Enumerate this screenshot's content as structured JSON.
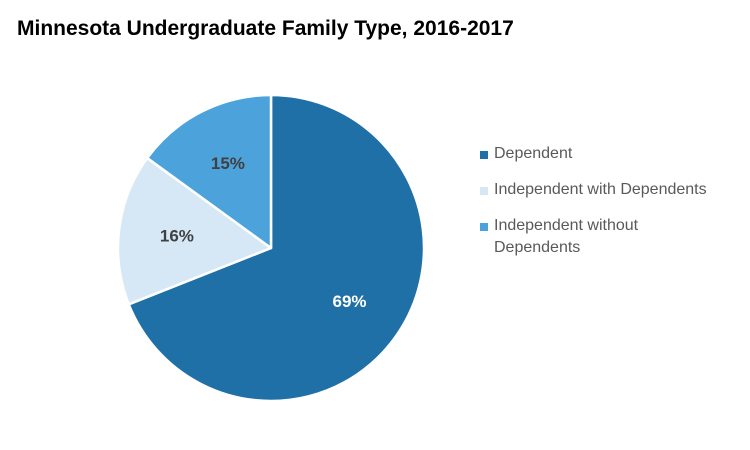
{
  "chart_data": {
    "type": "pie",
    "title": "Minnesota Undergraduate Family Type, 2016-2017",
    "categories": [
      "Dependent",
      "Independent with Dependents",
      "Independent without Dependents"
    ],
    "values": [
      69,
      16,
      15
    ],
    "value_labels": [
      "69%",
      "16%",
      "15%"
    ],
    "colors": [
      "#2070A8",
      "#D6E8F6",
      "#4CA3DC"
    ],
    "label_colors": [
      "#ffffff",
      "#404040",
      "#404040"
    ],
    "legend": {
      "position": "right",
      "entries": [
        "Dependent",
        "Independent with Dependents",
        "Independent without Dependents"
      ]
    }
  }
}
